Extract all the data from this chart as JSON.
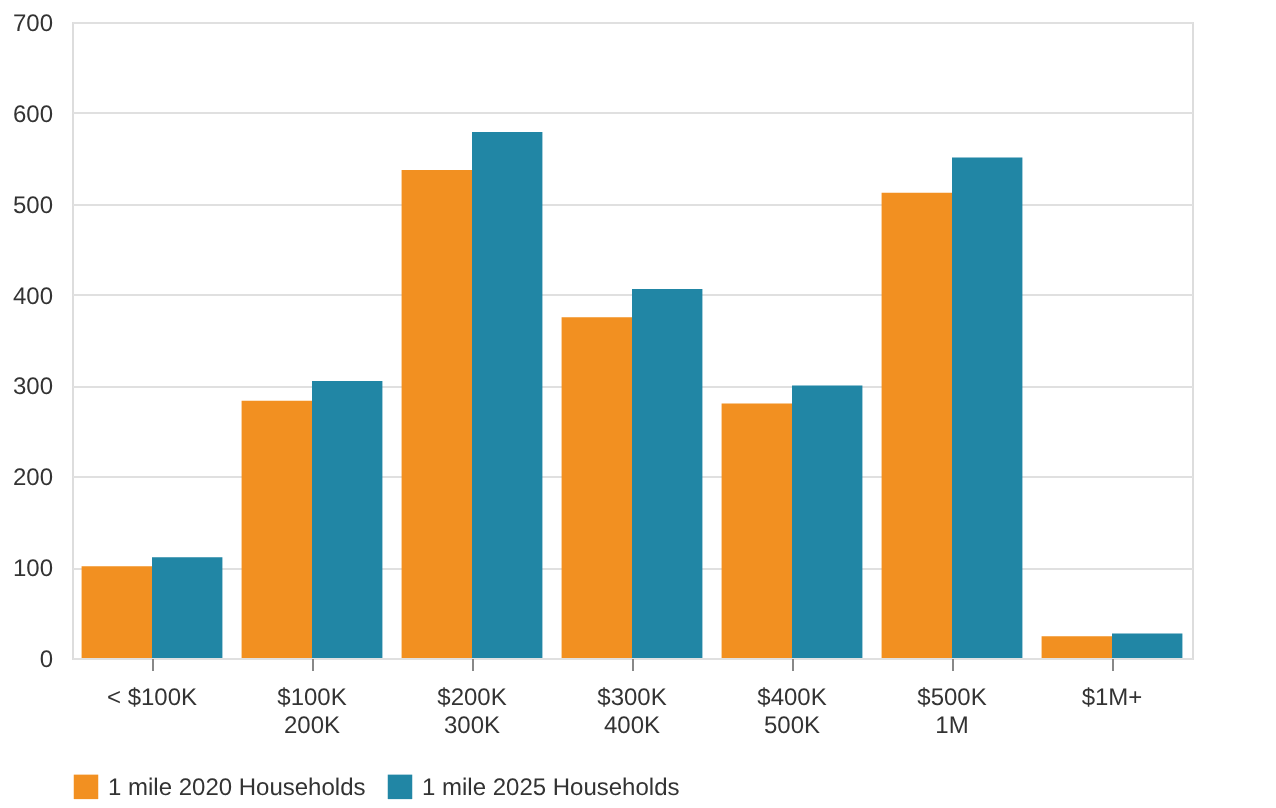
{
  "chart_data": {
    "type": "bar",
    "categories": [
      "< $100K",
      "$100K\n200K",
      "$200K\n300K",
      "$300K\n400K",
      "$400K\n500K",
      "$500K\n1M",
      "$1M+"
    ],
    "series": [
      {
        "name": "1 mile 2020 Households",
        "color": "#f29021",
        "values": [
          101,
          283,
          537,
          375,
          280,
          512,
          24
        ]
      },
      {
        "name": "1 mile 2025 Households",
        "color": "#2186a5",
        "values": [
          111,
          305,
          579,
          406,
          300,
          551,
          27
        ]
      }
    ],
    "ylim": [
      0,
      700
    ],
    "yticks": [
      0,
      100,
      200,
      300,
      400,
      500,
      600,
      700
    ],
    "grid": "y",
    "legend": "bottom"
  }
}
